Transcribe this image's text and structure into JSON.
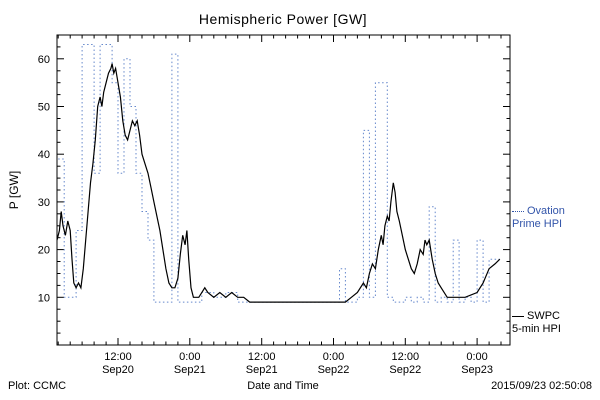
{
  "chart_data": {
    "type": "line",
    "title": "Hemispheric Power [GW]",
    "xlabel": "Date and Time",
    "ylabel": "P [GW]",
    "x_unit": "hours since 2015-09-20 00:00 UT",
    "xlim": [
      1.8,
      77.5
    ],
    "ylim": [
      0,
      65
    ],
    "grid": false,
    "legend_position": "right-outside",
    "x_ticks": [
      {
        "t": 12,
        "time": "12:00",
        "date": "Sep20"
      },
      {
        "t": 24,
        "time": "0:00",
        "date": "Sep21"
      },
      {
        "t": 36,
        "time": "12:00",
        "date": "Sep21"
      },
      {
        "t": 48,
        "time": "0:00",
        "date": "Sep22"
      },
      {
        "t": 60,
        "time": "12:00",
        "date": "Sep22"
      },
      {
        "t": 72,
        "time": "0:00",
        "date": "Sep23"
      }
    ],
    "y_ticks": [
      10,
      20,
      30,
      40,
      50,
      60
    ],
    "series": [
      {
        "name": "Ovation Prime HPI",
        "color": "#6688cc",
        "style": "dotted-step",
        "points": [
          [
            2,
            39
          ],
          [
            3,
            10
          ],
          [
            4,
            10
          ],
          [
            5,
            24
          ],
          [
            6,
            63
          ],
          [
            7,
            63
          ],
          [
            8,
            36
          ],
          [
            9,
            63
          ],
          [
            10,
            63
          ],
          [
            11,
            55
          ],
          [
            12,
            36
          ],
          [
            13,
            60
          ],
          [
            14,
            50
          ],
          [
            15,
            36
          ],
          [
            16,
            28
          ],
          [
            17,
            22
          ],
          [
            18,
            9
          ],
          [
            20,
            9
          ],
          [
            21,
            61
          ],
          [
            22,
            9
          ],
          [
            24,
            9
          ],
          [
            26,
            11
          ],
          [
            28,
            10
          ],
          [
            30,
            11
          ],
          [
            32,
            9
          ],
          [
            36,
            9
          ],
          [
            40,
            9
          ],
          [
            44,
            9
          ],
          [
            48,
            9
          ],
          [
            49,
            16
          ],
          [
            50,
            9
          ],
          [
            52,
            10
          ],
          [
            53,
            45
          ],
          [
            54,
            10
          ],
          [
            55,
            55
          ],
          [
            56,
            55
          ],
          [
            57,
            10
          ],
          [
            58,
            9
          ],
          [
            60,
            10
          ],
          [
            61,
            9
          ],
          [
            62,
            10
          ],
          [
            63,
            9
          ],
          [
            64,
            29
          ],
          [
            65,
            9
          ],
          [
            66,
            10
          ],
          [
            67,
            9
          ],
          [
            68,
            22
          ],
          [
            69,
            9
          ],
          [
            70,
            10
          ],
          [
            71,
            9
          ],
          [
            72,
            22
          ],
          [
            73,
            9
          ],
          [
            74,
            18
          ],
          [
            75.8,
            18
          ]
        ]
      },
      {
        "name": "SWPC 5-min HPI",
        "color": "#000000",
        "style": "solid",
        "points": [
          [
            1.8,
            22
          ],
          [
            2.2,
            24
          ],
          [
            2.5,
            28
          ],
          [
            2.8,
            25
          ],
          [
            3.2,
            23
          ],
          [
            3.6,
            26
          ],
          [
            4,
            24
          ],
          [
            4.3,
            18
          ],
          [
            4.6,
            13
          ],
          [
            5,
            12
          ],
          [
            5.4,
            13
          ],
          [
            5.8,
            12
          ],
          [
            6.2,
            16
          ],
          [
            6.6,
            22
          ],
          [
            7,
            28
          ],
          [
            7.4,
            34
          ],
          [
            7.8,
            38
          ],
          [
            8.2,
            43
          ],
          [
            8.6,
            50
          ],
          [
            9,
            52
          ],
          [
            9.3,
            50
          ],
          [
            9.6,
            53
          ],
          [
            10,
            55
          ],
          [
            10.4,
            57
          ],
          [
            10.8,
            58
          ],
          [
            11,
            59
          ],
          [
            11.3,
            57
          ],
          [
            11.6,
            58
          ],
          [
            12,
            55
          ],
          [
            12.4,
            52
          ],
          [
            12.8,
            47
          ],
          [
            13.2,
            44
          ],
          [
            13.6,
            43
          ],
          [
            14,
            45
          ],
          [
            14.4,
            47
          ],
          [
            14.8,
            46
          ],
          [
            15.2,
            47
          ],
          [
            15.6,
            44
          ],
          [
            16,
            40
          ],
          [
            16.5,
            38
          ],
          [
            17,
            36
          ],
          [
            17.5,
            33
          ],
          [
            18,
            30
          ],
          [
            18.5,
            27
          ],
          [
            19,
            24
          ],
          [
            19.5,
            20
          ],
          [
            20,
            16
          ],
          [
            20.5,
            13
          ],
          [
            21,
            12
          ],
          [
            21.5,
            12
          ],
          [
            22,
            14
          ],
          [
            22.4,
            19
          ],
          [
            22.8,
            23
          ],
          [
            23.2,
            21
          ],
          [
            23.5,
            24
          ],
          [
            23.8,
            18
          ],
          [
            24.2,
            12
          ],
          [
            24.6,
            10
          ],
          [
            25.5,
            10
          ],
          [
            26.5,
            12
          ],
          [
            27,
            11
          ],
          [
            28,
            10
          ],
          [
            29,
            11
          ],
          [
            30,
            10
          ],
          [
            31,
            11
          ],
          [
            32,
            10
          ],
          [
            33,
            10
          ],
          [
            34,
            9
          ],
          [
            36,
            9
          ],
          [
            40,
            9
          ],
          [
            44,
            9
          ],
          [
            48,
            9
          ],
          [
            50,
            9
          ],
          [
            51,
            10
          ],
          [
            52,
            11
          ],
          [
            53,
            13
          ],
          [
            53.5,
            12
          ],
          [
            54,
            15
          ],
          [
            54.5,
            17
          ],
          [
            55,
            16
          ],
          [
            55.5,
            20
          ],
          [
            56,
            23
          ],
          [
            56.3,
            21
          ],
          [
            56.6,
            25
          ],
          [
            57,
            27
          ],
          [
            57.3,
            26
          ],
          [
            57.6,
            30
          ],
          [
            58,
            34
          ],
          [
            58.3,
            32
          ],
          [
            58.6,
            28
          ],
          [
            59,
            26
          ],
          [
            59.5,
            23
          ],
          [
            60,
            20
          ],
          [
            60.5,
            18
          ],
          [
            61,
            16
          ],
          [
            61.5,
            15
          ],
          [
            62,
            17
          ],
          [
            62.5,
            20
          ],
          [
            63,
            19
          ],
          [
            63.3,
            22
          ],
          [
            63.6,
            21
          ],
          [
            64,
            22
          ],
          [
            64.5,
            18
          ],
          [
            65,
            15
          ],
          [
            65.5,
            13
          ],
          [
            66,
            12
          ],
          [
            67,
            10
          ],
          [
            68,
            10
          ],
          [
            70,
            10
          ],
          [
            72,
            11
          ],
          [
            73,
            13
          ],
          [
            74,
            16
          ],
          [
            75,
            17
          ],
          [
            75.8,
            18
          ]
        ]
      }
    ]
  },
  "legend": {
    "ovation": {
      "line1": "Ovation",
      "line2": "Prime HPI",
      "color": "#3355aa"
    },
    "swpc": {
      "line1": "SWPC",
      "line2": "5-min HPI",
      "color": "#000000"
    }
  },
  "footer": {
    "left": "Plot: CCMC",
    "right": "2015/09/23 02:50:08"
  }
}
